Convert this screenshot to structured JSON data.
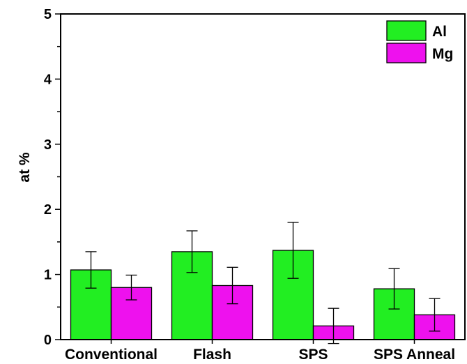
{
  "chart_data": {
    "type": "bar",
    "title": "",
    "xlabel": "",
    "ylabel": "at %",
    "ylim": [
      0,
      5
    ],
    "yticks": [
      "0",
      "1",
      "2",
      "3",
      "4",
      "5"
    ],
    "categories": [
      "Conventional",
      "Flash",
      "SPS",
      "SPS Anneal"
    ],
    "series": [
      {
        "name": "Al",
        "color": "#22ee22",
        "values": [
          1.07,
          1.35,
          1.37,
          0.78
        ],
        "errors": [
          0.28,
          0.32,
          0.43,
          0.31
        ]
      },
      {
        "name": "Mg",
        "color": "#ee11ee",
        "values": [
          0.8,
          0.83,
          0.21,
          0.38
        ],
        "errors": [
          0.19,
          0.28,
          0.27,
          0.25
        ]
      }
    ],
    "legend_position": "top-right",
    "grid": false
  }
}
